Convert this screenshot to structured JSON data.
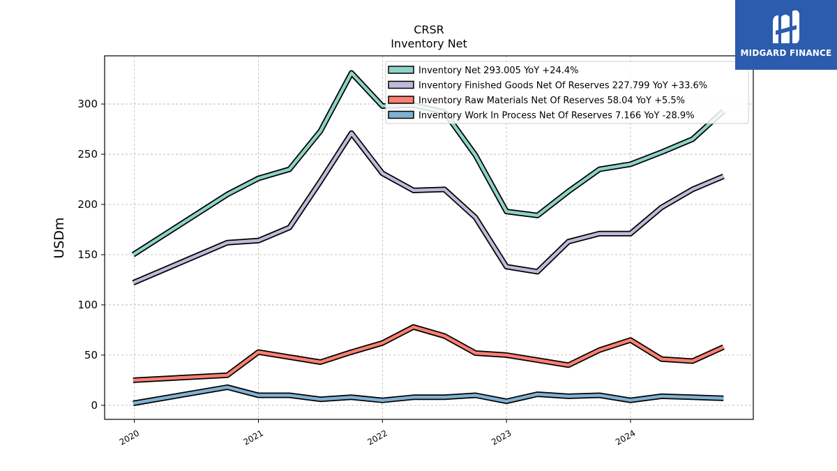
{
  "chart_data": {
    "type": "line",
    "title": "CRSR",
    "subtitle": "Inventory Net",
    "xlabel": "",
    "ylabel": "USDm",
    "ylim": [
      -14,
      348
    ],
    "xlim": [
      2019.76,
      2024.99
    ],
    "yticks": [
      0,
      50,
      100,
      150,
      200,
      250,
      300
    ],
    "xticks": [
      {
        "label": "2020",
        "value": 2020.0
      },
      {
        "label": "2021",
        "value": 2021.0
      },
      {
        "label": "2022",
        "value": 2022.0
      },
      {
        "label": "2023",
        "value": 2023.0
      },
      {
        "label": "2024",
        "value": 2024.0
      }
    ],
    "grid": true,
    "legend_position": "top-right",
    "x": [
      2019.99,
      2020.75,
      2021.0,
      2021.25,
      2021.5,
      2021.75,
      2022.0,
      2022.25,
      2022.5,
      2022.75,
      2023.0,
      2023.25,
      2023.5,
      2023.75,
      2024.0,
      2024.25,
      2024.5,
      2024.75
    ],
    "series": [
      {
        "name": "Inventory Net",
        "legend": "Inventory Net  293.005 YoY +24.4%",
        "color": "#8dd3c7",
        "values": [
          150,
          210,
          226,
          235,
          273,
          331,
          298,
          299,
          292,
          249,
          193,
          189,
          213,
          235,
          240,
          252,
          265,
          293
        ]
      },
      {
        "name": "Inventory Finished Goods Net Of Reserves",
        "legend": "Inventory Finished Goods Net Of Reserves  227.799 YoY +33.6%",
        "color": "#bebada",
        "values": [
          122,
          162,
          164,
          177,
          223,
          271,
          231,
          214,
          215,
          187,
          138,
          133,
          163,
          171,
          171,
          197,
          215,
          228
        ]
      },
      {
        "name": "Inventory Raw Materials Net Of Reserves",
        "legend": "Inventory Raw Materials Net Of Reserves  58.04 YoY +5.5%",
        "color": "#fb8072",
        "values": [
          25,
          30,
          53,
          48,
          43,
          53,
          62,
          78,
          69,
          52,
          50,
          45,
          40,
          55,
          65,
          46,
          44,
          58
        ]
      },
      {
        "name": "Inventory Work In Process Net Of Reserves",
        "legend": "Inventory Work In Process Net Of Reserves  7.166 YoY -28.9%",
        "color": "#80b1d3",
        "values": [
          2,
          18,
          10,
          10,
          6,
          8,
          5,
          8,
          8,
          10,
          4,
          11,
          9,
          10,
          5,
          9,
          8,
          7
        ]
      }
    ]
  },
  "brand": {
    "name": "MIDGARD FINANCE",
    "color": "#2b5cad"
  }
}
